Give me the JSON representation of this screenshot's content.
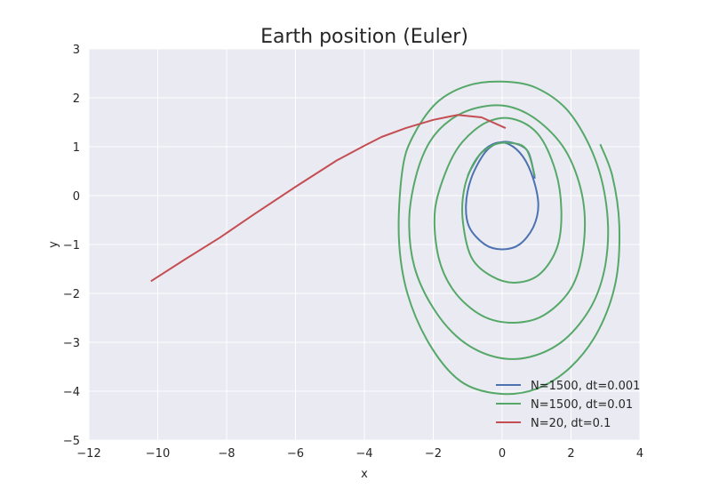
{
  "chart_data": {
    "type": "line",
    "title": "Earth position (Euler)",
    "xlabel": "x",
    "ylabel": "y",
    "xlim": [
      -12,
      4
    ],
    "ylim": [
      -5,
      3
    ],
    "xticks": [
      -12,
      -10,
      -8,
      -6,
      -4,
      -2,
      0,
      2,
      4
    ],
    "yticks": [
      -5,
      -4,
      -3,
      -2,
      -1,
      0,
      1,
      2,
      3
    ],
    "xtick_labels": [
      "−12",
      "−10",
      "−8",
      "−6",
      "−4",
      "−2",
      "0",
      "2",
      "4"
    ],
    "ytick_labels": [
      "−5",
      "−4",
      "−3",
      "−2",
      "−1",
      "0",
      "1",
      "2",
      "3"
    ],
    "grid": true,
    "legend_position": "lower-right",
    "colors": {
      "background": "#eaeaf2",
      "grid": "#ffffff"
    },
    "series": [
      {
        "name": "N=1500, dt=0.001",
        "color": "#4c72b0",
        "x": [
          0.95,
          0.75,
          0.3,
          -0.1,
          -0.5,
          -0.9,
          -1.05,
          -0.95,
          -0.5,
          0.0,
          0.5,
          0.9,
          1.05,
          0.9,
          0.6,
          0.2,
          -0.2,
          -0.6,
          -0.9,
          -1.0
        ],
        "y": [
          0.35,
          0.9,
          1.08,
          1.08,
          0.88,
          0.35,
          -0.2,
          -0.65,
          -1.0,
          -1.1,
          -1.0,
          -0.65,
          -0.2,
          0.35,
          0.8,
          1.05,
          1.07,
          0.88,
          0.55,
          0.4
        ]
      },
      {
        "name": "N=1500, dt=0.01",
        "color": "#55a868",
        "x": [
          0.95,
          0.7,
          0.2,
          -0.3,
          -0.75,
          -1.08,
          -1.15,
          -0.9,
          -0.3,
          0.4,
          1.1,
          1.6,
          1.72,
          1.55,
          1.05,
          0.3,
          -0.45,
          -1.15,
          -1.6,
          -1.95,
          -1.85,
          -1.4,
          -0.6,
          0.3,
          1.2,
          2.0,
          2.35,
          2.35,
          1.9,
          1.1,
          0.2,
          -0.7,
          -1.5,
          -2.1,
          -2.5,
          -2.7,
          -2.55,
          -2.0,
          -1.2,
          -0.2,
          0.8,
          1.8,
          2.6,
          3.0,
          3.05,
          2.7,
          1.95,
          1.0,
          0.0,
          -1.0,
          -1.9,
          -2.6,
          -2.9,
          -3.0,
          -2.75,
          -2.1,
          -1.2,
          -0.1,
          1.0,
          2.0,
          2.8,
          3.3,
          3.4,
          3.2,
          2.85
        ],
        "y": [
          0.4,
          0.95,
          1.08,
          1.02,
          0.75,
          0.2,
          -0.45,
          -1.25,
          -1.65,
          -1.78,
          -1.6,
          -1.05,
          -0.3,
          0.5,
          1.25,
          1.57,
          1.5,
          1.1,
          0.55,
          -0.3,
          -1.25,
          -1.95,
          -2.45,
          -2.6,
          -2.45,
          -1.9,
          -1.1,
          -0.1,
          0.85,
          1.5,
          1.82,
          1.8,
          1.55,
          1.1,
          0.4,
          -0.5,
          -1.45,
          -2.3,
          -2.95,
          -3.3,
          -3.3,
          -2.95,
          -2.25,
          -1.4,
          -0.35,
          0.75,
          1.7,
          2.2,
          2.33,
          2.25,
          1.9,
          1.2,
          0.5,
          -0.85,
          -2.0,
          -3.05,
          -3.8,
          -4.05,
          -3.95,
          -3.5,
          -2.75,
          -1.75,
          -0.6,
          0.4,
          1.05
        ]
      },
      {
        "name": "N=20, dt=0.1",
        "color": "#c44e52",
        "x": [
          0.1,
          -0.6,
          -1.3,
          -2.0,
          -2.8,
          -3.5,
          -4.0,
          -4.8,
          -6.0,
          -7.2,
          -8.2,
          -9.2,
          -10.2
        ],
        "y": [
          1.38,
          1.6,
          1.65,
          1.55,
          1.38,
          1.2,
          1.02,
          0.72,
          0.18,
          -0.38,
          -0.86,
          -1.3,
          -1.75
        ]
      }
    ]
  }
}
